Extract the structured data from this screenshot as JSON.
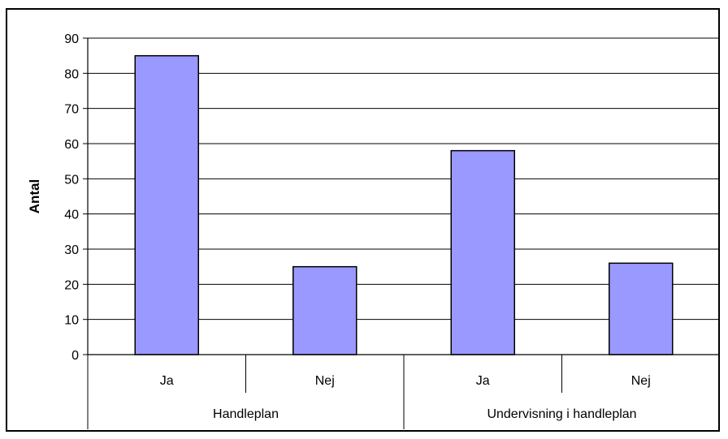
{
  "chart_data": {
    "type": "bar",
    "categories": [
      "Ja",
      "Nej",
      "Ja",
      "Nej"
    ],
    "groups": [
      {
        "label": "Handleplan",
        "categories": [
          "Ja",
          "Nej"
        ]
      },
      {
        "label": "Undervisning i handleplan",
        "categories": [
          "Ja",
          "Nej"
        ]
      }
    ],
    "values": [
      85,
      25,
      58,
      26
    ],
    "ylabel": "Antal",
    "ylim": [
      0,
      90
    ],
    "yticks": [
      0,
      10,
      20,
      30,
      40,
      50,
      60,
      70,
      80,
      90
    ],
    "grid": true,
    "bar_color": "#9999ff"
  }
}
